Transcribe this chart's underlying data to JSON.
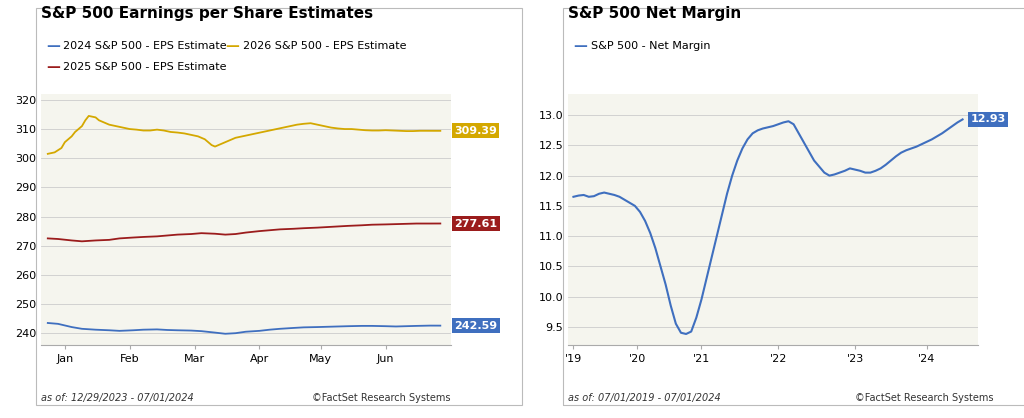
{
  "chart1": {
    "title": "S&P 500 Earnings per Share Estimates",
    "date_range": "as of: 12/29/2023 - 07/01/2024",
    "credit": "©FactSet Research Systems",
    "ylim": [
      236,
      322
    ],
    "yticks": [
      240,
      250,
      260,
      270,
      280,
      290,
      300,
      310,
      320
    ],
    "legend": [
      {
        "label": "2024 S&P 500 - EPS Estimate",
        "color": "#3F6FBF"
      },
      {
        "label": "2026 S&P 500 - EPS Estimate",
        "color": "#D4A800"
      },
      {
        "label": "2025 S&P 500 - EPS Estimate",
        "color": "#9B1C1C"
      }
    ],
    "end_labels": [
      {
        "value": 242.59,
        "color": "#3F6FBF"
      },
      {
        "value": 277.61,
        "color": "#9B1C1C"
      },
      {
        "value": 309.39,
        "color": "#D4A800"
      }
    ],
    "series": {
      "blue_2024": {
        "color": "#3F6FBF",
        "points": [
          [
            0,
            243.5
          ],
          [
            3,
            243.2
          ],
          [
            7,
            242.1
          ],
          [
            10,
            241.5
          ],
          [
            14,
            241.2
          ],
          [
            18,
            241.0
          ],
          [
            21,
            240.8
          ],
          [
            25,
            241.0
          ],
          [
            28,
            241.2
          ],
          [
            32,
            241.3
          ],
          [
            35,
            241.1
          ],
          [
            38,
            241.0
          ],
          [
            42,
            240.9
          ],
          [
            45,
            240.7
          ],
          [
            49,
            240.2
          ],
          [
            52,
            239.8
          ],
          [
            55,
            240.0
          ],
          [
            58,
            240.5
          ],
          [
            62,
            240.8
          ],
          [
            65,
            241.2
          ],
          [
            68,
            241.5
          ],
          [
            72,
            241.8
          ],
          [
            75,
            242.0
          ],
          [
            79,
            242.1
          ],
          [
            82,
            242.2
          ],
          [
            85,
            242.3
          ],
          [
            88,
            242.4
          ],
          [
            92,
            242.5
          ],
          [
            95,
            242.5
          ],
          [
            99,
            242.4
          ],
          [
            102,
            242.3
          ],
          [
            105,
            242.4
          ],
          [
            108,
            242.5
          ],
          [
            112,
            242.6
          ],
          [
            115,
            242.59
          ]
        ]
      },
      "red_2025": {
        "color": "#9B1C1C",
        "points": [
          [
            0,
            272.5
          ],
          [
            3,
            272.3
          ],
          [
            7,
            271.8
          ],
          [
            10,
            271.5
          ],
          [
            14,
            271.8
          ],
          [
            18,
            272.0
          ],
          [
            21,
            272.5
          ],
          [
            25,
            272.8
          ],
          [
            28,
            273.0
          ],
          [
            32,
            273.2
          ],
          [
            35,
            273.5
          ],
          [
            38,
            273.8
          ],
          [
            42,
            274.0
          ],
          [
            45,
            274.3
          ],
          [
            49,
            274.1
          ],
          [
            52,
            273.8
          ],
          [
            55,
            274.0
          ],
          [
            58,
            274.5
          ],
          [
            62,
            275.0
          ],
          [
            65,
            275.3
          ],
          [
            68,
            275.6
          ],
          [
            72,
            275.8
          ],
          [
            75,
            276.0
          ],
          [
            79,
            276.2
          ],
          [
            82,
            276.4
          ],
          [
            85,
            276.6
          ],
          [
            88,
            276.8
          ],
          [
            92,
            277.0
          ],
          [
            95,
            277.2
          ],
          [
            99,
            277.3
          ],
          [
            102,
            277.4
          ],
          [
            105,
            277.5
          ],
          [
            108,
            277.6
          ],
          [
            112,
            277.6
          ],
          [
            115,
            277.61
          ]
        ]
      },
      "gold_2026": {
        "color": "#D4A800",
        "points": [
          [
            0,
            301.5
          ],
          [
            2,
            302.0
          ],
          [
            4,
            303.5
          ],
          [
            5,
            305.5
          ],
          [
            7,
            307.5
          ],
          [
            8,
            309.0
          ],
          [
            10,
            311.0
          ],
          [
            11,
            313.0
          ],
          [
            12,
            314.5
          ],
          [
            14,
            314.0
          ],
          [
            15,
            313.0
          ],
          [
            17,
            312.0
          ],
          [
            18,
            311.5
          ],
          [
            20,
            311.0
          ],
          [
            22,
            310.5
          ],
          [
            24,
            310.0
          ],
          [
            26,
            309.8
          ],
          [
            28,
            309.5
          ],
          [
            30,
            309.5
          ],
          [
            32,
            309.8
          ],
          [
            34,
            309.5
          ],
          [
            36,
            309.0
          ],
          [
            38,
            308.8
          ],
          [
            40,
            308.5
          ],
          [
            42,
            308.0
          ],
          [
            44,
            307.5
          ],
          [
            46,
            306.5
          ],
          [
            47,
            305.5
          ],
          [
            48,
            304.5
          ],
          [
            49,
            304.0
          ],
          [
            50,
            304.5
          ],
          [
            51,
            305.0
          ],
          [
            52,
            305.5
          ],
          [
            53,
            306.0
          ],
          [
            54,
            306.5
          ],
          [
            55,
            307.0
          ],
          [
            57,
            307.5
          ],
          [
            59,
            308.0
          ],
          [
            61,
            308.5
          ],
          [
            63,
            309.0
          ],
          [
            65,
            309.5
          ],
          [
            67,
            310.0
          ],
          [
            69,
            310.5
          ],
          [
            71,
            311.0
          ],
          [
            73,
            311.5
          ],
          [
            75,
            311.8
          ],
          [
            77,
            312.0
          ],
          [
            79,
            311.5
          ],
          [
            81,
            311.0
          ],
          [
            83,
            310.5
          ],
          [
            85,
            310.2
          ],
          [
            87,
            310.0
          ],
          [
            89,
            310.0
          ],
          [
            91,
            309.8
          ],
          [
            93,
            309.6
          ],
          [
            95,
            309.5
          ],
          [
            97,
            309.5
          ],
          [
            99,
            309.6
          ],
          [
            101,
            309.5
          ],
          [
            103,
            309.4
          ],
          [
            105,
            309.3
          ],
          [
            107,
            309.3
          ],
          [
            109,
            309.4
          ],
          [
            111,
            309.4
          ],
          [
            113,
            309.39
          ],
          [
            115,
            309.39
          ]
        ]
      }
    },
    "x_ticks_labels": [
      "Jan",
      "Feb",
      "Mar",
      "Apr",
      "May",
      "Jun"
    ],
    "x_ticks_pos": [
      5,
      24,
      43,
      62,
      80,
      99
    ],
    "background": "#F5F5EE"
  },
  "chart2": {
    "title": "S&P 500 Net Margin",
    "date_range": "as of: 07/01/2019 - 07/01/2024",
    "credit": "©FactSet Research Systems",
    "ylim": [
      9.2,
      13.35
    ],
    "yticks": [
      9.5,
      10.0,
      10.5,
      11.0,
      11.5,
      12.0,
      12.5,
      13.0
    ],
    "legend": [
      {
        "label": "S&P 500 - Net Margin",
        "color": "#3F6FBF"
      }
    ],
    "end_label": {
      "value": 12.93,
      "color": "#3F6FBF"
    },
    "series": {
      "color": "#3F6FBF",
      "points": [
        [
          0,
          11.65
        ],
        [
          1,
          11.67
        ],
        [
          2,
          11.68
        ],
        [
          3,
          11.65
        ],
        [
          4,
          11.66
        ],
        [
          5,
          11.7
        ],
        [
          6,
          11.72
        ],
        [
          7,
          11.7
        ],
        [
          8,
          11.68
        ],
        [
          9,
          11.65
        ],
        [
          10,
          11.6
        ],
        [
          11,
          11.55
        ],
        [
          12,
          11.5
        ],
        [
          13,
          11.4
        ],
        [
          14,
          11.25
        ],
        [
          15,
          11.05
        ],
        [
          16,
          10.8
        ],
        [
          17,
          10.5
        ],
        [
          18,
          10.2
        ],
        [
          19,
          9.85
        ],
        [
          20,
          9.55
        ],
        [
          21,
          9.4
        ],
        [
          22,
          9.38
        ],
        [
          23,
          9.42
        ],
        [
          24,
          9.65
        ],
        [
          25,
          9.95
        ],
        [
          26,
          10.3
        ],
        [
          27,
          10.65
        ],
        [
          28,
          11.0
        ],
        [
          29,
          11.35
        ],
        [
          30,
          11.7
        ],
        [
          31,
          12.0
        ],
        [
          32,
          12.25
        ],
        [
          33,
          12.45
        ],
        [
          34,
          12.6
        ],
        [
          35,
          12.7
        ],
        [
          36,
          12.75
        ],
        [
          37,
          12.78
        ],
        [
          38,
          12.8
        ],
        [
          39,
          12.82
        ],
        [
          40,
          12.85
        ],
        [
          41,
          12.88
        ],
        [
          42,
          12.9
        ],
        [
          43,
          12.85
        ],
        [
          44,
          12.7
        ],
        [
          45,
          12.55
        ],
        [
          46,
          12.4
        ],
        [
          47,
          12.25
        ],
        [
          48,
          12.15
        ],
        [
          49,
          12.05
        ],
        [
          50,
          12.0
        ],
        [
          51,
          12.02
        ],
        [
          52,
          12.05
        ],
        [
          53,
          12.08
        ],
        [
          54,
          12.12
        ],
        [
          55,
          12.1
        ],
        [
          56,
          12.08
        ],
        [
          57,
          12.05
        ],
        [
          58,
          12.05
        ],
        [
          59,
          12.08
        ],
        [
          60,
          12.12
        ],
        [
          61,
          12.18
        ],
        [
          62,
          12.25
        ],
        [
          63,
          12.32
        ],
        [
          64,
          12.38
        ],
        [
          65,
          12.42
        ],
        [
          66,
          12.45
        ],
        [
          67,
          12.48
        ],
        [
          68,
          12.52
        ],
        [
          69,
          12.56
        ],
        [
          70,
          12.6
        ],
        [
          71,
          12.65
        ],
        [
          72,
          12.7
        ],
        [
          73,
          12.76
        ],
        [
          74,
          12.82
        ],
        [
          75,
          12.88
        ],
        [
          76,
          12.93
        ]
      ]
    },
    "x_ticks_labels": [
      "'19",
      "'20",
      "'21",
      "'22",
      "'23",
      "'24"
    ],
    "x_ticks_pos": [
      0,
      12.5,
      25,
      40,
      55,
      69
    ],
    "background": "#F5F5EE"
  },
  "figure_bg": "#FFFFFF",
  "panel_bg": "#F5F5EE",
  "title_fontsize": 11,
  "legend_fontsize": 8,
  "tick_fontsize": 8,
  "annotation_fontsize": 8
}
